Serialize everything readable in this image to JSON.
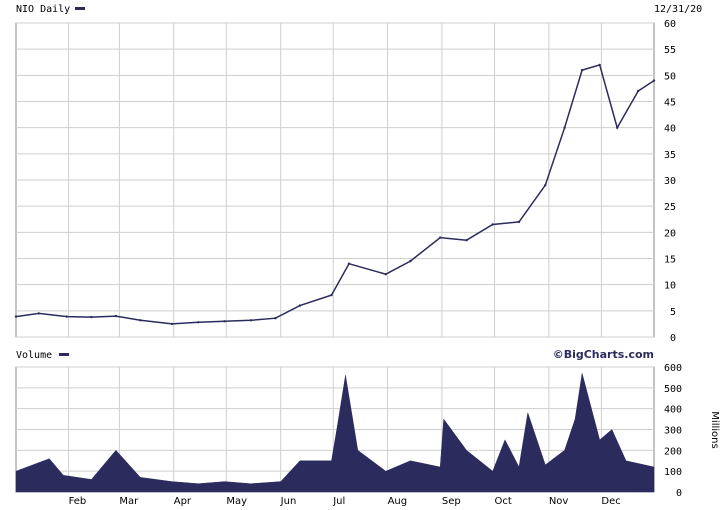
{
  "chart_data": [
    {
      "type": "line",
      "title": "NIO Daily",
      "date_label": "12/31/20",
      "brand": "©BigCharts.com",
      "series_color": "#2b2b5e",
      "ylim": [
        0,
        60
      ],
      "y_ticks": [
        0,
        5,
        10,
        15,
        20,
        25,
        30,
        35,
        40,
        45,
        50,
        55,
        60
      ],
      "x_tick_labels": [
        "Feb",
        "Mar",
        "Apr",
        "May",
        "Jun",
        "Jul",
        "Aug",
        "Sep",
        "Oct",
        "Nov",
        "Dec"
      ],
      "x": [
        "2020-01-02",
        "2020-01-15",
        "2020-01-31",
        "2020-02-14",
        "2020-02-28",
        "2020-03-13",
        "2020-03-31",
        "2020-04-15",
        "2020-04-30",
        "2020-05-15",
        "2020-05-29",
        "2020-06-12",
        "2020-06-30",
        "2020-07-10",
        "2020-07-31",
        "2020-08-14",
        "2020-08-31",
        "2020-09-15",
        "2020-09-30",
        "2020-10-15",
        "2020-10-30",
        "2020-11-10",
        "2020-11-20",
        "2020-11-30",
        "2020-12-10",
        "2020-12-22",
        "2020-12-31"
      ],
      "values": [
        3.9,
        4.5,
        3.9,
        3.8,
        4.0,
        3.2,
        2.5,
        2.8,
        3.0,
        3.2,
        3.6,
        6.0,
        8.0,
        14.0,
        12.0,
        14.5,
        19.0,
        18.5,
        21.5,
        22.0,
        29.0,
        40.0,
        51.0,
        52.0,
        40.0,
        47.0,
        49.0
      ],
      "grid": true
    },
    {
      "type": "area",
      "title": "Volume",
      "ylabel": "Millions",
      "ylim": [
        0,
        600
      ],
      "y_ticks": [
        0,
        100,
        200,
        300,
        400,
        500,
        600
      ],
      "x": [
        "2020-01-02",
        "2020-01-21",
        "2020-01-29",
        "2020-02-14",
        "2020-02-28",
        "2020-03-13",
        "2020-03-31",
        "2020-04-15",
        "2020-04-30",
        "2020-05-15",
        "2020-06-01",
        "2020-06-12",
        "2020-06-30",
        "2020-07-03",
        "2020-07-08",
        "2020-07-15",
        "2020-07-31",
        "2020-08-14",
        "2020-08-31",
        "2020-09-02",
        "2020-09-15",
        "2020-09-30",
        "2020-10-07",
        "2020-10-15",
        "2020-10-20",
        "2020-10-30",
        "2020-11-10",
        "2020-11-16",
        "2020-11-20",
        "2020-11-30",
        "2020-12-07",
        "2020-12-15",
        "2020-12-31"
      ],
      "values": [
        100,
        160,
        80,
        60,
        200,
        70,
        50,
        40,
        50,
        40,
        50,
        150,
        150,
        300,
        560,
        200,
        100,
        150,
        120,
        350,
        200,
        100,
        250,
        120,
        380,
        130,
        200,
        350,
        570,
        250,
        300,
        150,
        120
      ],
      "grid": true
    }
  ]
}
